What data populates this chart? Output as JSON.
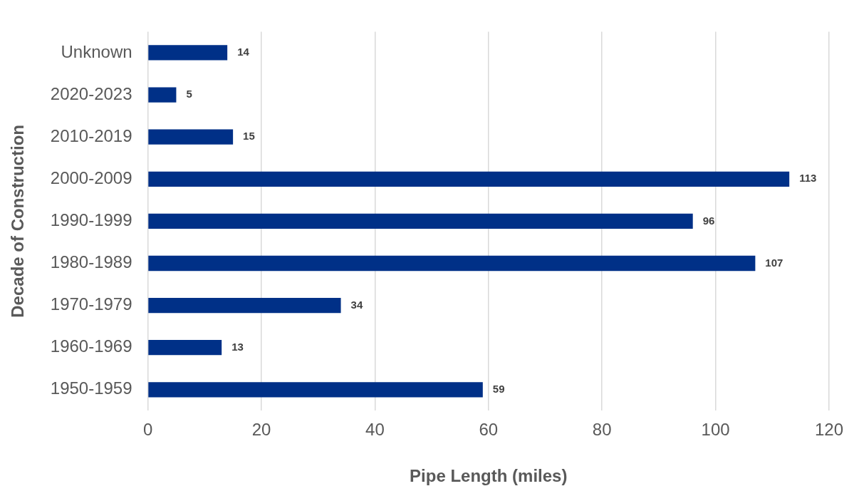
{
  "chart_data": {
    "type": "bar",
    "orientation": "horizontal",
    "xlabel": "Pipe Length (miles)",
    "ylabel": "Decade of Construction",
    "categories": [
      "Unknown",
      "2020-2023",
      "2010-2019",
      "2000-2009",
      "1990-1999",
      "1980-1989",
      "1970-1979",
      "1960-1969",
      "1950-1959"
    ],
    "values": [
      14,
      5,
      15,
      113,
      96,
      107,
      34,
      13,
      59
    ],
    "color": "#003087",
    "xlim": [
      0,
      120
    ],
    "xticks": [
      0,
      20,
      40,
      60,
      80,
      100,
      120
    ],
    "grid": "x",
    "legend": false,
    "data_labels": true
  }
}
